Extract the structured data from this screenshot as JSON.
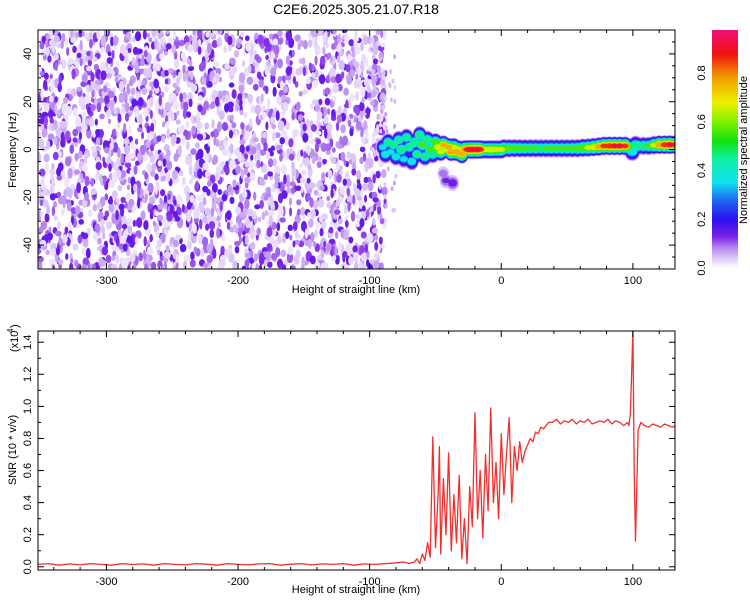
{
  "title": "C2E6.2025.305.21.07.R18",
  "chart_data": [
    {
      "type": "heatmap",
      "xlabel": "Height of straight line (km)",
      "ylabel": "Frequency (Hz)",
      "xlim": [
        -352,
        132
      ],
      "ylim": [
        -50,
        50
      ],
      "xticks": [
        -300,
        -200,
        -100,
        0,
        100
      ],
      "xtick_labels": [
        "-300",
        "-200",
        "-100",
        "0",
        "100"
      ],
      "yticks": [
        -40,
        -20,
        0,
        20,
        40
      ],
      "ytick_labels": [
        "-40",
        "-20",
        "0",
        "20",
        "40"
      ],
      "noise_region": {
        "x_range": [
          -352,
          -92
        ],
        "amplitude_range": [
          0.02,
          0.16
        ]
      },
      "signal_track_columns": [
        "height_km",
        "frequency_hz",
        "amplitude"
      ],
      "signal_track": [
        [
          -90,
          1,
          0.4
        ],
        [
          -88,
          -2,
          0.45
        ],
        [
          -86,
          3,
          0.5
        ],
        [
          -84,
          -1,
          0.4
        ],
        [
          -82,
          2,
          0.5
        ],
        [
          -80,
          -3,
          0.45
        ],
        [
          -78,
          4,
          0.5
        ],
        [
          -76,
          0,
          0.55
        ],
        [
          -74,
          -4,
          0.4
        ],
        [
          -72,
          5,
          0.5
        ],
        [
          -70,
          1,
          0.5
        ],
        [
          -68,
          -5,
          0.45
        ],
        [
          -66,
          3,
          0.55
        ],
        [
          -64,
          -2,
          0.5
        ],
        [
          -62,
          6,
          0.55
        ],
        [
          -60,
          2,
          0.6
        ],
        [
          -58,
          -3,
          0.5
        ],
        [
          -56,
          4,
          0.55
        ],
        [
          -54,
          0,
          0.6
        ],
        [
          -52,
          -2,
          0.5
        ],
        [
          -50,
          3,
          0.65
        ],
        [
          -48,
          1,
          0.75
        ],
        [
          -46,
          -1,
          0.7
        ],
        [
          -44,
          2,
          0.8
        ],
        [
          -42,
          0,
          0.75
        ],
        [
          -40,
          1,
          0.8
        ],
        [
          -38,
          -1,
          0.85
        ],
        [
          -36,
          1,
          0.7
        ],
        [
          -34,
          -1,
          0.85
        ],
        [
          -32,
          0,
          0.75
        ],
        [
          -30,
          -2,
          0.8
        ],
        [
          -28,
          0,
          0.85
        ],
        [
          -26,
          0,
          0.9
        ],
        [
          -24,
          0,
          0.95
        ],
        [
          -22,
          0,
          0.95
        ],
        [
          -20,
          0,
          0.92
        ],
        [
          -18,
          0,
          0.95
        ],
        [
          -16,
          0,
          0.9
        ],
        [
          -14,
          0,
          0.7
        ],
        [
          -12,
          0,
          0.7
        ],
        [
          -10,
          0,
          0.72
        ],
        [
          -8,
          0,
          0.75
        ],
        [
          -6,
          0,
          0.72
        ],
        [
          -4,
          0,
          0.7
        ],
        [
          -2,
          0,
          0.68
        ],
        [
          0,
          0,
          0.7
        ],
        [
          2,
          0.5,
          0.65
        ],
        [
          6,
          0.5,
          0.62
        ],
        [
          10,
          0.5,
          0.6
        ],
        [
          14,
          0.5,
          0.58
        ],
        [
          18,
          0.5,
          0.57
        ],
        [
          22,
          0.5,
          0.56
        ],
        [
          26,
          0.5,
          0.56
        ],
        [
          30,
          0.5,
          0.55
        ],
        [
          34,
          0.5,
          0.56
        ],
        [
          38,
          0.5,
          0.57
        ],
        [
          42,
          0.5,
          0.56
        ],
        [
          46,
          0.5,
          0.56
        ],
        [
          50,
          0.5,
          0.57
        ],
        [
          54,
          0.5,
          0.58
        ],
        [
          58,
          0.5,
          0.6
        ],
        [
          62,
          0.7,
          0.65
        ],
        [
          66,
          0.8,
          0.7
        ],
        [
          70,
          1,
          0.75
        ],
        [
          74,
          1.2,
          0.82
        ],
        [
          78,
          1.5,
          0.88
        ],
        [
          82,
          1.5,
          0.92
        ],
        [
          86,
          1.5,
          0.93
        ],
        [
          90,
          1.5,
          0.93
        ],
        [
          94,
          1.5,
          0.88
        ],
        [
          97,
          1,
          0.6
        ],
        [
          99,
          -1,
          0.45
        ],
        [
          100,
          -1,
          0.45
        ],
        [
          102,
          2,
          0.5
        ],
        [
          104,
          1.5,
          0.55
        ],
        [
          108,
          1.5,
          0.55
        ],
        [
          112,
          1.5,
          0.56
        ],
        [
          116,
          1.8,
          0.7
        ],
        [
          120,
          2,
          0.85
        ],
        [
          124,
          2,
          0.9
        ],
        [
          128,
          2,
          0.93
        ],
        [
          132,
          2,
          0.93
        ],
        [
          -42,
          -13,
          0.15
        ],
        [
          -37,
          -14,
          0.18
        ],
        [
          -44,
          -10,
          0.12
        ]
      ],
      "colorbar": {
        "label": "Normalized spectral amplitude",
        "ticks": [
          0.0,
          0.2,
          0.4,
          0.6,
          0.8
        ],
        "tick_labels": [
          "0.0",
          "0.2",
          "0.4",
          "0.6",
          "0.8"
        ],
        "range": [
          0,
          0.977
        ]
      },
      "colormap": [
        [
          0,
          "#ffffff"
        ],
        [
          0.03,
          "#e6d8fa"
        ],
        [
          0.08,
          "#b98cf0"
        ],
        [
          0.13,
          "#7a1fe8"
        ],
        [
          0.2,
          "#2a10f0"
        ],
        [
          0.28,
          "#1d6bf0"
        ],
        [
          0.35,
          "#10e0f0"
        ],
        [
          0.45,
          "#10f0a0"
        ],
        [
          0.52,
          "#10e010"
        ],
        [
          0.6,
          "#80f000"
        ],
        [
          0.68,
          "#f0f000"
        ],
        [
          0.78,
          "#f0a000"
        ],
        [
          0.88,
          "#f01010"
        ],
        [
          1.0,
          "#f0107a"
        ]
      ]
    },
    {
      "type": "line",
      "xlabel": "Height of straight line (km)",
      "ylabel": "SNR (10 * v/v)",
      "y_multiplier": "(x10",
      "y_multiplier_exp": "4",
      "xlim": [
        -352,
        132
      ],
      "ylim": [
        -0.02,
        1.47
      ],
      "xticks": [
        -300,
        -200,
        -100,
        0,
        100
      ],
      "xtick_labels": [
        "-300",
        "-200",
        "-100",
        "0",
        "100"
      ],
      "yticks": [
        0.0,
        0.2,
        0.4,
        0.6,
        0.8,
        1.0,
        1.2,
        1.4
      ],
      "ytick_labels": [
        "0.0",
        "0.2",
        "0.4",
        "0.6",
        "0.8",
        "1.0",
        "1.2",
        "1.4"
      ],
      "series": [
        {
          "name": "SNR",
          "color": "#f03030",
          "x": [
            -352,
            -344,
            -336,
            -328,
            -320,
            -312,
            -304,
            -296,
            -288,
            -280,
            -272,
            -264,
            -256,
            -248,
            -240,
            -232,
            -224,
            -216,
            -208,
            -200,
            -192,
            -184,
            -176,
            -168,
            -160,
            -152,
            -144,
            -136,
            -128,
            -120,
            -112,
            -104,
            -96,
            -88,
            -80,
            -74,
            -70,
            -66,
            -64,
            -62,
            -60,
            -58,
            -56,
            -54,
            -52,
            -50,
            -48,
            -47,
            -46,
            -44,
            -42,
            -40,
            -38,
            -36,
            -34,
            -32,
            -30,
            -28,
            -26,
            -24,
            -22,
            -20,
            -18,
            -16,
            -14,
            -12,
            -10,
            -8,
            -6,
            -4,
            -2,
            0,
            2,
            4,
            6,
            8,
            10,
            12,
            14,
            16,
            18,
            20,
            22,
            24,
            26,
            28,
            30,
            32,
            34,
            36,
            39,
            42,
            45,
            48,
            51,
            54,
            57,
            60,
            63,
            66,
            69,
            72,
            75,
            78,
            81,
            84,
            87,
            90,
            93,
            96,
            97,
            98,
            99,
            100,
            101,
            102,
            103,
            104,
            106,
            109,
            112,
            115,
            118,
            121,
            124,
            127,
            130,
            132
          ],
          "y": [
            0.015,
            0.02,
            0.01,
            0.018,
            0.012,
            0.02,
            0.015,
            0.01,
            0.02,
            0.014,
            0.018,
            0.01,
            0.02,
            0.015,
            0.012,
            0.02,
            0.016,
            0.01,
            0.02,
            0.015,
            0.012,
            0.018,
            0.02,
            0.01,
            0.016,
            0.02,
            0.012,
            0.018,
            0.015,
            0.02,
            0.01,
            0.018,
            0.015,
            0.02,
            0.025,
            0.03,
            0.02,
            0.03,
            0.05,
            0.02,
            0.08,
            0.04,
            0.15,
            0.06,
            0.81,
            0.12,
            0.45,
            0.75,
            0.08,
            0.55,
            0.2,
            0.71,
            0.1,
            0.45,
            0.15,
            0.57,
            0.05,
            0.3,
            0.02,
            0.5,
            0.25,
            0.96,
            0.3,
            0.6,
            0.18,
            0.7,
            0.35,
            0.99,
            0.4,
            0.65,
            0.3,
            0.83,
            0.45,
            0.7,
            0.93,
            0.4,
            0.75,
            0.6,
            0.78,
            0.65,
            0.72,
            0.76,
            0.8,
            0.78,
            0.84,
            0.83,
            0.87,
            0.86,
            0.88,
            0.9,
            0.9,
            0.92,
            0.89,
            0.91,
            0.9,
            0.92,
            0.89,
            0.91,
            0.9,
            0.92,
            0.89,
            0.9,
            0.91,
            0.9,
            0.92,
            0.89,
            0.91,
            0.9,
            0.88,
            0.9,
            0.88,
            0.95,
            1.2,
            1.47,
            0.6,
            0.16,
            0.5,
            0.85,
            0.9,
            0.88,
            0.87,
            0.89,
            0.88,
            0.87,
            0.89,
            0.88,
            0.87,
            0.88
          ]
        }
      ]
    }
  ]
}
